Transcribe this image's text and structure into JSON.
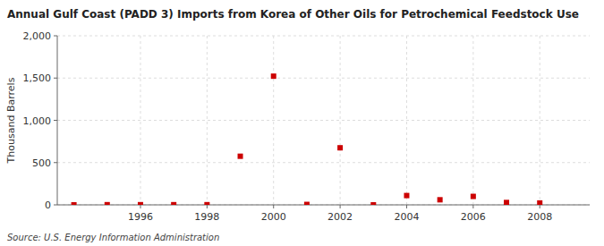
{
  "chart_data": {
    "type": "scatter",
    "title": "Annual Gulf Coast (PADD 3) Imports from Korea of Other Oils for Petrochemical Feedstock Use",
    "ylabel": "Thousand Barrels",
    "source": "Source: U.S. Energy Information Administration",
    "x": [
      1994,
      1995,
      1996,
      1997,
      1998,
      1999,
      2000,
      2001,
      2002,
      2003,
      2004,
      2005,
      2006,
      2007,
      2008
    ],
    "values": [
      0,
      2,
      2,
      2,
      2,
      575,
      1522,
      5,
      675,
      0,
      110,
      60,
      100,
      28,
      22
    ],
    "color": "#cc0000",
    "marker": "square",
    "xlim": [
      1993.5,
      2009.5
    ],
    "xticks": [
      1996,
      1998,
      2000,
      2002,
      2004,
      2006,
      2008
    ],
    "ylim": [
      0,
      2000
    ],
    "yticks": [
      0,
      500,
      {
        "value": 1000,
        "label": "1,000"
      },
      {
        "value": 1500,
        "label": "1,500"
      },
      {
        "value": 2000,
        "label": "2,000"
      }
    ],
    "grid": true
  }
}
